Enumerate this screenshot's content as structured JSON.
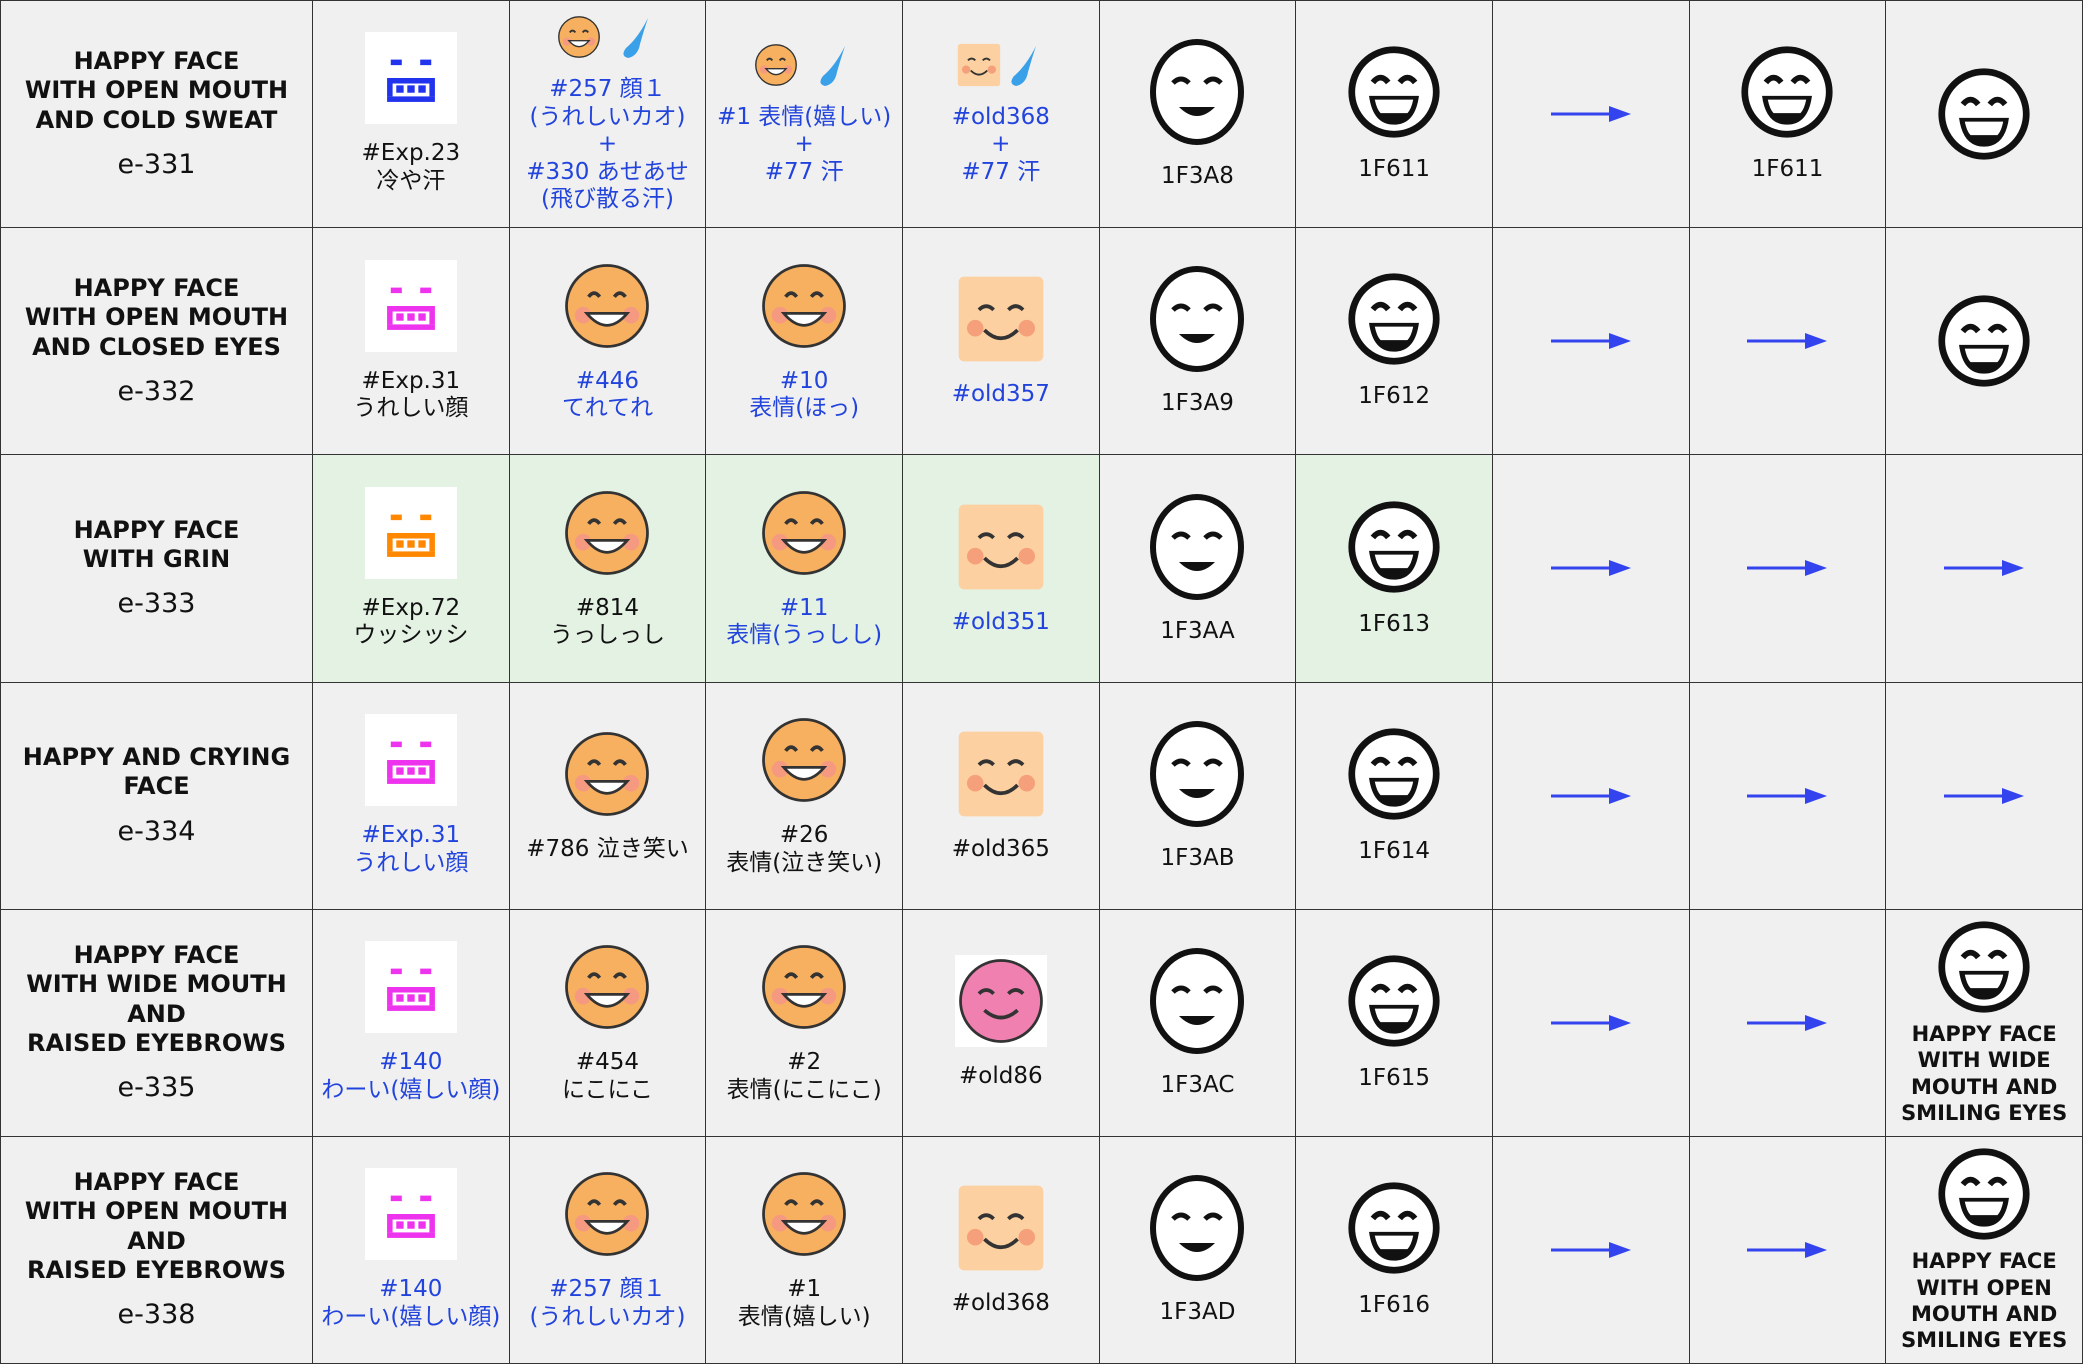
{
  "rows": [
    {
      "name": [
        "HAPPY FACE",
        "WITH OPEN MOUTH",
        "AND COLD SWEAT"
      ],
      "code": "e-331",
      "cells": [
        {
          "icon": "pixel",
          "icon_color": "#2233ee",
          "text": [
            "#Exp.23",
            "冷や汗"
          ]
        },
        {
          "icon": "orange-sweat",
          "text": [
            "#257 顔１",
            "(うれしいカオ)",
            "+",
            "#330 あせあせ",
            "(飛び散る汗)"
          ],
          "link": true
        },
        {
          "icon": "orange-sweat",
          "text": [
            "#1 表情(嬉しい)",
            "+",
            "#77 汗"
          ],
          "link": true
        },
        {
          "icon": "square-sweat",
          "text": [
            "#old368",
            "+",
            "#77 汗"
          ],
          "link": true
        },
        {
          "icon": "oval",
          "text": [
            "1F3A8"
          ]
        },
        {
          "icon": "round",
          "text": [
            "1F611"
          ]
        },
        {
          "icon": "arrow"
        },
        {
          "icon": "round",
          "text": [
            "1F611"
          ]
        },
        {
          "icon": "round"
        }
      ]
    },
    {
      "name": [
        "HAPPY FACE",
        "WITH OPEN MOUTH",
        "AND CLOSED EYES"
      ],
      "code": "e-332",
      "cells": [
        {
          "icon": "pixel",
          "icon_color": "#ee33ee",
          "text": [
            "#Exp.31",
            "うれしい顔"
          ]
        },
        {
          "icon": "orange",
          "text": [
            "#446",
            "てれてれ"
          ],
          "link": true
        },
        {
          "icon": "orange",
          "text": [
            "#10",
            "表情(ほっ)"
          ],
          "link": true
        },
        {
          "icon": "square",
          "text": [
            "#old357"
          ],
          "link": true
        },
        {
          "icon": "oval",
          "text": [
            "1F3A9"
          ]
        },
        {
          "icon": "round",
          "text": [
            "1F612"
          ]
        },
        {
          "icon": "arrow"
        },
        {
          "icon": "arrow"
        },
        {
          "icon": "round"
        }
      ]
    },
    {
      "name": [
        "HAPPY FACE",
        "WITH GRIN"
      ],
      "code": "e-333",
      "cells": [
        {
          "icon": "pixel",
          "icon_color": "#ff8800",
          "text": [
            "#Exp.72",
            "ウッシッシ"
          ],
          "highlight": true
        },
        {
          "icon": "orange",
          "text": [
            "#814",
            "うっしっし"
          ],
          "highlight": true
        },
        {
          "icon": "orange",
          "text": [
            "#11",
            "表情(うっしし)"
          ],
          "link": true,
          "highlight": true
        },
        {
          "icon": "square",
          "text": [
            "#old351"
          ],
          "link": true,
          "highlight": true
        },
        {
          "icon": "oval",
          "text": [
            "1F3AA"
          ]
        },
        {
          "icon": "round",
          "text": [
            "1F613"
          ],
          "highlight": true
        },
        {
          "icon": "arrow"
        },
        {
          "icon": "arrow"
        },
        {
          "icon": "arrow"
        }
      ]
    },
    {
      "name": [
        "HAPPY AND CRYING",
        "FACE"
      ],
      "code": "e-334",
      "cells": [
        {
          "icon": "pixel",
          "icon_color": "#ee33ee",
          "text": [
            "#Exp.31",
            "うれしい顔"
          ],
          "link": true
        },
        {
          "icon": "orange",
          "text": [
            "#786 泣き笑い"
          ]
        },
        {
          "icon": "orange",
          "text": [
            "#26",
            "表情(泣き笑い)"
          ]
        },
        {
          "icon": "square",
          "text": [
            "#old365"
          ]
        },
        {
          "icon": "oval",
          "text": [
            "1F3AB"
          ]
        },
        {
          "icon": "round",
          "text": [
            "1F614"
          ]
        },
        {
          "icon": "arrow"
        },
        {
          "icon": "arrow"
        },
        {
          "icon": "arrow"
        }
      ]
    },
    {
      "name": [
        "HAPPY FACE",
        "WITH WIDE MOUTH",
        "AND",
        "RAISED EYEBROWS"
      ],
      "code": "e-335",
      "cells": [
        {
          "icon": "pixel",
          "icon_color": "#ee33ee",
          "text": [
            "#140",
            "わーい(嬉しい顔)"
          ],
          "link": true
        },
        {
          "icon": "orange",
          "text": [
            "#454",
            "にこにこ"
          ]
        },
        {
          "icon": "orange",
          "text": [
            "#2",
            "表情(にこにこ)"
          ]
        },
        {
          "icon": "pink",
          "text": [
            "#old86"
          ]
        },
        {
          "icon": "oval",
          "text": [
            "1F3AC"
          ]
        },
        {
          "icon": "round",
          "text": [
            "1F615"
          ]
        },
        {
          "icon": "arrow"
        },
        {
          "icon": "arrow"
        },
        {
          "icon": "round",
          "caption": [
            "HAPPY FACE",
            "WITH WIDE",
            "MOUTH AND",
            "SMILING EYES"
          ]
        }
      ]
    },
    {
      "name": [
        "HAPPY FACE",
        "WITH OPEN MOUTH",
        "AND",
        "RAISED EYEBROWS"
      ],
      "code": "e-338",
      "cells": [
        {
          "icon": "pixel",
          "icon_color": "#ee33ee",
          "text": [
            "#140",
            "わーい(嬉しい顔)"
          ],
          "link": true
        },
        {
          "icon": "orange",
          "text": [
            "#257 顔１",
            "(うれしいカオ)"
          ],
          "link": true
        },
        {
          "icon": "orange",
          "text": [
            "#1",
            "表情(嬉しい)"
          ]
        },
        {
          "icon": "square",
          "text": [
            "#old368"
          ]
        },
        {
          "icon": "oval",
          "text": [
            "1F3AD"
          ]
        },
        {
          "icon": "round",
          "text": [
            "1F616"
          ]
        },
        {
          "icon": "arrow"
        },
        {
          "icon": "arrow"
        },
        {
          "icon": "round",
          "caption": [
            "HAPPY FACE",
            "WITH OPEN",
            "MOUTH AND",
            "SMILING EYES"
          ]
        }
      ]
    }
  ]
}
